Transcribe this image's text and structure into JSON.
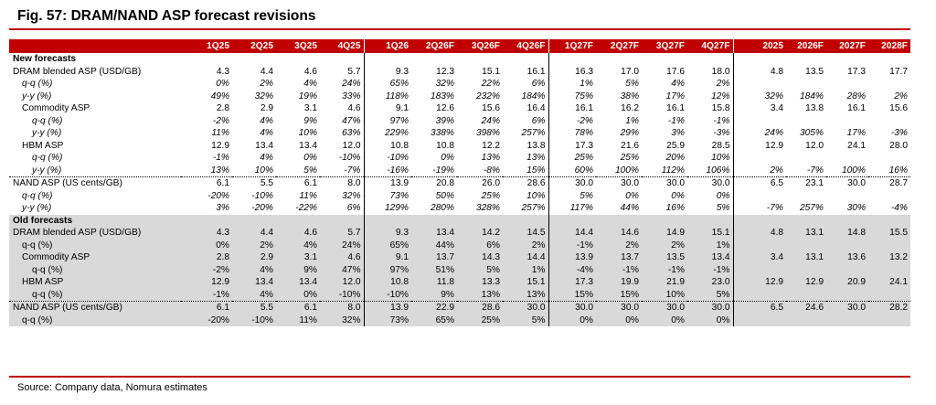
{
  "title": "Fig. 57: DRAM/NAND ASP forecast revisions",
  "source": "Source: Company data, Nomura estimates",
  "columns": [
    "",
    "1Q25",
    "2Q25",
    "3Q25",
    "4Q25",
    "1Q26",
    "2Q26F",
    "3Q26F",
    "4Q26F",
    "1Q27F",
    "2Q27F",
    "3Q27F",
    "4Q27F",
    "2025",
    "2026F",
    "2027F",
    "2028F"
  ],
  "rows": [
    {
      "label": "New forecasts",
      "cls": "sec",
      "indent": 0,
      "cells": [
        "",
        "",
        "",
        "",
        "",
        "",
        "",
        "",
        "",
        "",
        "",
        "",
        "",
        "",
        "",
        ""
      ]
    },
    {
      "label": "DRAM blended ASP (USD/GB)",
      "cls": "",
      "indent": 0,
      "cells": [
        "4.3",
        "4.4",
        "4.6",
        "5.7",
        "9.3",
        "12.3",
        "15.1",
        "16.1",
        "16.3",
        "17.0",
        "17.6",
        "18.0",
        "4.8",
        "13.5",
        "17.3",
        "17.7"
      ]
    },
    {
      "label": "q-q (%)",
      "cls": "it",
      "indent": 1,
      "cells": [
        "0%",
        "2%",
        "4%",
        "24%",
        "65%",
        "32%",
        "22%",
        "6%",
        "1%",
        "5%",
        "4%",
        "2%",
        "",
        "",
        "",
        ""
      ]
    },
    {
      "label": "y-y (%)",
      "cls": "it",
      "indent": 1,
      "cells": [
        "49%",
        "32%",
        "19%",
        "33%",
        "118%",
        "183%",
        "232%",
        "184%",
        "75%",
        "38%",
        "17%",
        "12%",
        "32%",
        "184%",
        "28%",
        "2%"
      ]
    },
    {
      "label": "Commodity ASP",
      "cls": "",
      "indent": 1,
      "cells": [
        "2.8",
        "2.9",
        "3.1",
        "4.6",
        "9.1",
        "12.6",
        "15.6",
        "16.4",
        "16.1",
        "16.2",
        "16.1",
        "15.8",
        "3.4",
        "13.8",
        "16.1",
        "15.6"
      ]
    },
    {
      "label": "q-q (%)",
      "cls": "it",
      "indent": 2,
      "cells": [
        "-2%",
        "4%",
        "9%",
        "47%",
        "97%",
        "39%",
        "24%",
        "6%",
        "-2%",
        "1%",
        "-1%",
        "-1%",
        "",
        "",
        "",
        ""
      ]
    },
    {
      "label": "y-y (%)",
      "cls": "it",
      "indent": 2,
      "cells": [
        "11%",
        "4%",
        "10%",
        "63%",
        "229%",
        "338%",
        "398%",
        "257%",
        "78%",
        "29%",
        "3%",
        "-3%",
        "24%",
        "305%",
        "17%",
        "-3%"
      ]
    },
    {
      "label": "HBM ASP",
      "cls": "",
      "indent": 1,
      "cells": [
        "12.9",
        "13.4",
        "13.4",
        "12.0",
        "10.8",
        "10.8",
        "12.2",
        "13.8",
        "17.3",
        "21.6",
        "25.9",
        "28.5",
        "12.9",
        "12.0",
        "24.1",
        "28.0"
      ]
    },
    {
      "label": "q-q (%)",
      "cls": "it",
      "indent": 2,
      "cells": [
        "-1%",
        "4%",
        "0%",
        "-10%",
        "-10%",
        "0%",
        "13%",
        "13%",
        "25%",
        "25%",
        "20%",
        "10%",
        "",
        "",
        "",
        ""
      ]
    },
    {
      "label": "y-y (%)",
      "cls": "it sepline",
      "indent": 2,
      "cells": [
        "13%",
        "10%",
        "5%",
        "-7%",
        "-16%",
        "-19%",
        "-8%",
        "15%",
        "60%",
        "100%",
        "112%",
        "106%",
        "2%",
        "-7%",
        "100%",
        "16%"
      ]
    },
    {
      "label": "NAND ASP (US cents/GB)",
      "cls": "",
      "indent": 0,
      "cells": [
        "6.1",
        "5.5",
        "6.1",
        "8.0",
        "13.9",
        "20.8",
        "26.0",
        "28.6",
        "30.0",
        "30.0",
        "30.0",
        "30.0",
        "6.5",
        "23.1",
        "30.0",
        "28.7"
      ]
    },
    {
      "label": "q-q (%)",
      "cls": "it",
      "indent": 1,
      "cells": [
        "-20%",
        "-10%",
        "11%",
        "32%",
        "73%",
        "50%",
        "25%",
        "10%",
        "5%",
        "0%",
        "0%",
        "0%",
        "",
        "",
        "",
        ""
      ]
    },
    {
      "label": "y-y (%)",
      "cls": "it",
      "indent": 1,
      "cells": [
        "3%",
        "-20%",
        "-22%",
        "6%",
        "129%",
        "280%",
        "328%",
        "257%",
        "117%",
        "44%",
        "16%",
        "5%",
        "-7%",
        "257%",
        "30%",
        "-4%"
      ]
    },
    {
      "label": "Old forecasts",
      "cls": "sec old",
      "indent": 0,
      "cells": [
        "",
        "",
        "",
        "",
        "",
        "",
        "",
        "",
        "",
        "",
        "",
        "",
        "",
        "",
        "",
        ""
      ]
    },
    {
      "label": "DRAM blended ASP (USD/GB)",
      "cls": "old",
      "indent": 0,
      "cells": [
        "4.3",
        "4.4",
        "4.6",
        "5.7",
        "9.3",
        "13.4",
        "14.2",
        "14.5",
        "14.4",
        "14.6",
        "14.9",
        "15.1",
        "4.8",
        "13.1",
        "14.8",
        "15.5"
      ]
    },
    {
      "label": "q-q (%)",
      "cls": "old",
      "indent": 1,
      "cells": [
        "0%",
        "2%",
        "4%",
        "24%",
        "65%",
        "44%",
        "6%",
        "2%",
        "-1%",
        "2%",
        "2%",
        "1%",
        "",
        "",
        "",
        ""
      ]
    },
    {
      "label": "Commodity ASP",
      "cls": "old",
      "indent": 1,
      "cells": [
        "2.8",
        "2.9",
        "3.1",
        "4.6",
        "9.1",
        "13.7",
        "14.3",
        "14.4",
        "13.9",
        "13.7",
        "13.5",
        "13.4",
        "3.4",
        "13.1",
        "13.6",
        "13.2"
      ]
    },
    {
      "label": "q-q (%)",
      "cls": "old",
      "indent": 2,
      "cells": [
        "-2%",
        "4%",
        "9%",
        "47%",
        "97%",
        "51%",
        "5%",
        "1%",
        "-4%",
        "-1%",
        "-1%",
        "-1%",
        "",
        "",
        "",
        ""
      ]
    },
    {
      "label": "HBM ASP",
      "cls": "old",
      "indent": 1,
      "cells": [
        "12.9",
        "13.4",
        "13.4",
        "12.0",
        "10.8",
        "11.8",
        "13.3",
        "15.1",
        "17.3",
        "19.9",
        "21.9",
        "23.0",
        "12.9",
        "12.9",
        "20.9",
        "24.1"
      ]
    },
    {
      "label": "q-q (%)",
      "cls": "old sepline",
      "indent": 2,
      "cells": [
        "-1%",
        "4%",
        "0%",
        "-10%",
        "-10%",
        "9%",
        "13%",
        "13%",
        "15%",
        "15%",
        "10%",
        "5%",
        "",
        "",
        "",
        ""
      ]
    },
    {
      "label": "NAND ASP (US cents/GB)",
      "cls": "old",
      "indent": 0,
      "cells": [
        "6.1",
        "5.5",
        "6.1",
        "8.0",
        "13.9",
        "22.9",
        "28.6",
        "30.0",
        "30.0",
        "30.0",
        "30.0",
        "30.0",
        "6.5",
        "24.6",
        "30.0",
        "28.2"
      ]
    },
    {
      "label": "q-q (%)",
      "cls": "old",
      "indent": 1,
      "cells": [
        "-20%",
        "-10%",
        "11%",
        "32%",
        "73%",
        "65%",
        "25%",
        "5%",
        "0%",
        "0%",
        "0%",
        "0%",
        "",
        "",
        "",
        ""
      ]
    }
  ]
}
